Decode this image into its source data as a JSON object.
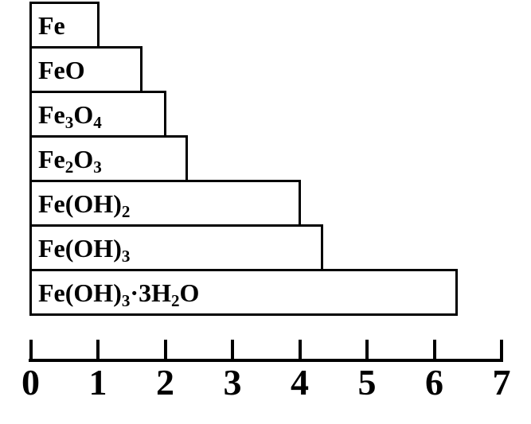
{
  "figure": {
    "background": "#ffffff",
    "ink_color": "#000000"
  },
  "chart_data": {
    "type": "bar",
    "orientation": "horizontal",
    "title": "",
    "subtitle": "",
    "xlabel": "",
    "ylabel": "",
    "categories": [
      "Fe",
      "FeO",
      "Fe₃O₄",
      "Fe₂O₃",
      "Fe(OH)₂",
      "Fe(OH)₃",
      "Fe(OH)₃·3H₂O"
    ],
    "values": [
      1.0,
      1.65,
      2.0,
      2.32,
      4.0,
      4.33,
      6.33
    ],
    "xlim": [
      0,
      7
    ],
    "x_ticks": [
      "0",
      "1",
      "2",
      "3",
      "4",
      "5",
      "6",
      "7"
    ],
    "bar_fill": "#ffffff",
    "bar_border": "#000000",
    "label_position": "inside-left",
    "grid": false,
    "legend": false
  }
}
